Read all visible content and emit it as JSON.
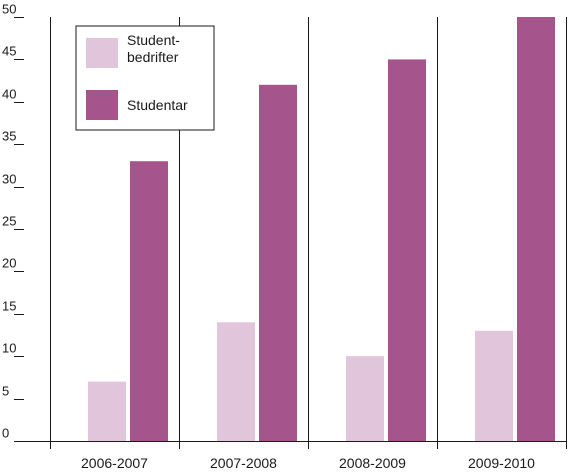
{
  "chart_data": {
    "type": "bar",
    "categories": [
      "2006-2007",
      "2007-2008",
      "2008-2009",
      "2009-2010"
    ],
    "series": [
      {
        "name": "Student-\nbedrifter",
        "color": "#e0c5db",
        "values": [
          7,
          14,
          10,
          13
        ]
      },
      {
        "name": "Studentar",
        "color": "#a6558c",
        "values": [
          33,
          42,
          45,
          50
        ]
      }
    ],
    "ylim": [
      0,
      50
    ],
    "yticks": [
      0,
      5,
      10,
      15,
      20,
      25,
      30,
      35,
      40,
      45,
      50
    ],
    "grid": "vertical lines between categories",
    "legend_position": "top-left",
    "title": "",
    "xlabel": "",
    "ylabel": ""
  }
}
